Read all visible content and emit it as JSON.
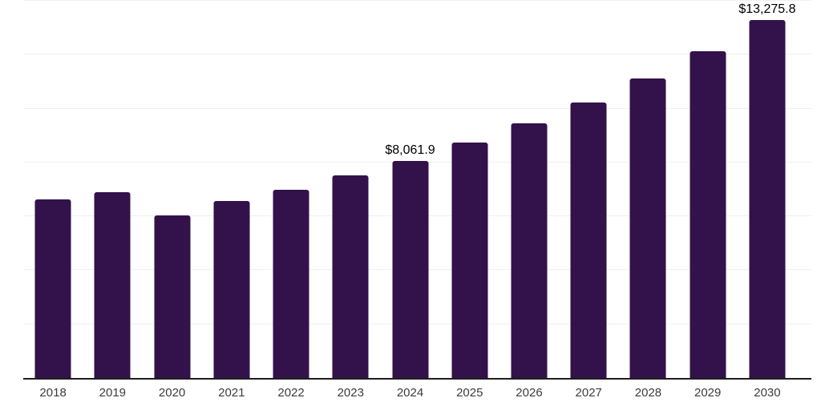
{
  "chart_data": {
    "type": "bar",
    "title": "",
    "xlabel": "",
    "ylabel": "",
    "categories": [
      "2018",
      "2019",
      "2020",
      "2021",
      "2022",
      "2023",
      "2024",
      "2025",
      "2026",
      "2027",
      "2028",
      "2029",
      "2030"
    ],
    "values": [
      6640,
      6910,
      6030,
      6570,
      6990,
      7530,
      8061.9,
      8740,
      9455,
      10240,
      11120,
      12130,
      13275.8
    ],
    "data_labels": {
      "2024": "$8,061.9",
      "2030": "$13,275.8"
    },
    "ylim": [
      0,
      14000
    ],
    "grid_interval": 2000,
    "gridlines_visible": true,
    "y_axis_labels_visible": false,
    "legend": "none",
    "colors": {
      "bar": "#33114b",
      "axis_line": "#1e1e1e",
      "gridline": "#f0f0f0",
      "tick_label": "#3c3c3c",
      "data_label": "#000000",
      "background": "#ffffff"
    }
  }
}
